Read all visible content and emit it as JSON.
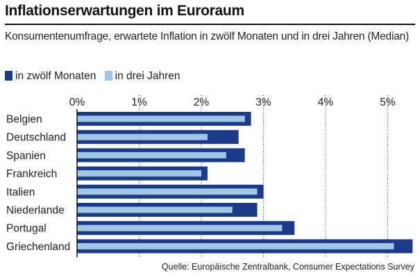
{
  "title": "Inflationserwartungen im Euroraum",
  "subtitle": "Konsumentenumfrage, erwartete Inflation in zwölf Monaten und in drei Jahren (Median)",
  "source": "Quelle: Europäische Zentralbank, Consumer Expectations Survey",
  "colors": {
    "twelve_months": "#1b3a8c",
    "three_years": "#9ec7e3",
    "grid": "#333333",
    "axis": "#111111"
  },
  "chart_data": {
    "type": "bar",
    "orientation": "horizontal",
    "categories": [
      "Belgien",
      "Deutschland",
      "Spanien",
      "Frankreich",
      "Italien",
      "Niederlande",
      "Portugal",
      "Griechenland"
    ],
    "series": [
      {
        "name": "in zwölf Monaten",
        "values": [
          2.8,
          2.6,
          2.7,
          2.1,
          3.0,
          2.9,
          3.5,
          5.4
        ]
      },
      {
        "name": "in drei Jahren",
        "values": [
          2.7,
          2.1,
          2.4,
          2.0,
          2.9,
          2.5,
          3.3,
          5.1
        ]
      }
    ],
    "x_ticks": [
      "0%",
      "1%",
      "2%",
      "3%",
      "4%",
      "5%"
    ],
    "x_tick_values": [
      0,
      1,
      2,
      3,
      4,
      5
    ],
    "xlim": [
      0,
      5.4
    ],
    "grid": true,
    "grid_style": "dotted",
    "legend_position": "top-left"
  }
}
